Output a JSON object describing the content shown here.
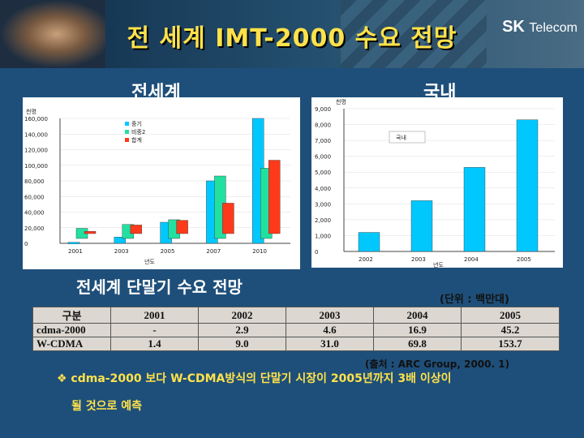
{
  "header": {
    "title": "전 세계 IMT-2000 수요 전망",
    "logo_main": "SK",
    "logo_sub": "Telecom"
  },
  "subtitles": {
    "world": "전세계",
    "domestic": "국내"
  },
  "colors": {
    "bar1": "#ff3a1a",
    "bar2": "#22e0a0",
    "bar3": "#00c8ff",
    "bar4": "#3aa8ff"
  },
  "chart_data": [
    {
      "type": "bar",
      "ylabel": "천명",
      "xlabel": "년도",
      "categories": [
        "2001",
        "2003",
        "2005",
        "2007",
        "2010"
      ],
      "ylim": [
        0,
        160000
      ],
      "yticks": [
        "0",
        "20,000",
        "40,000",
        "60,000",
        "80,000",
        "100,000",
        "120,000",
        "140,000",
        "160,000"
      ],
      "series": [
        {
          "name": "중기",
          "values": [
            1400,
            8000,
            27000,
            80000,
            160000
          ]
        },
        {
          "name": "비중2",
          "values": [
            13000,
            18000,
            24000,
            80000,
            90000
          ]
        },
        {
          "name": "합계",
          "values": [
            2900,
            11000,
            17000,
            39000,
            94000
          ]
        }
      ]
    },
    {
      "type": "bar",
      "ylabel": "천명",
      "xlabel": "년도",
      "categories": [
        "2002",
        "2003",
        "2004",
        "2005"
      ],
      "ylim": [
        0,
        9000
      ],
      "yticks": [
        "0",
        "1,000",
        "2,000",
        "3,000",
        "4,000",
        "5,000",
        "6,000",
        "7,000",
        "8,000",
        "9,000"
      ],
      "legend": "국내",
      "series": [
        {
          "name": "국내",
          "values": [
            1200,
            3200,
            5300,
            8300
          ]
        }
      ]
    }
  ],
  "note": "전세계 단말기 수요 전망",
  "table": {
    "unit": "(단위 : 백만대)",
    "header": [
      "구분",
      "2001",
      "2002",
      "2003",
      "2004",
      "2005"
    ],
    "rows": [
      [
        "cdma-2000",
        "-",
        "2.9",
        "4.6",
        "16.9",
        "45.2"
      ],
      [
        "W-CDMA",
        "1.4",
        "9.0",
        "31.0",
        "69.8",
        "153.7"
      ]
    ],
    "source": "(출처 : ARC Group, 2000. 1)"
  },
  "bullet": {
    "line1": "❖ cdma-2000 보다 W-CDMA방식의 단말기 시장이 2005년까지 3배 이상이",
    "line2": "될 것으로 예측"
  }
}
